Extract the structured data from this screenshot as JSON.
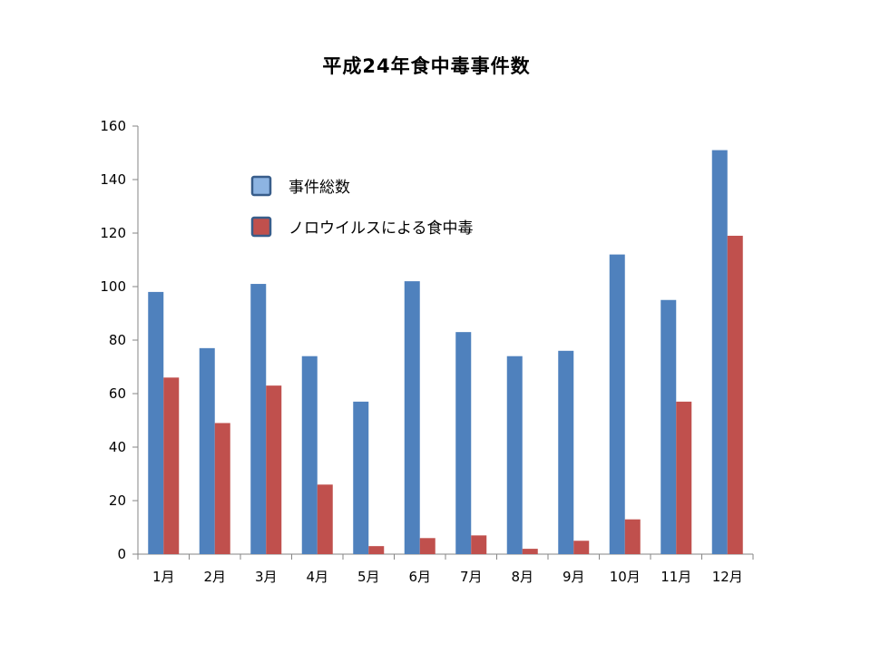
{
  "chart_data": {
    "type": "bar",
    "title": "平成24年食中毒事件数",
    "categories": [
      "1月",
      "2月",
      "3月",
      "4月",
      "5月",
      "6月",
      "7月",
      "8月",
      "9月",
      "10月",
      "11月",
      "12月"
    ],
    "series": [
      {
        "name": "事件総数",
        "color": "#4F81BD",
        "values": [
          98,
          77,
          101,
          74,
          57,
          102,
          83,
          74,
          76,
          112,
          95,
          151
        ]
      },
      {
        "name": "ノロウイルスによる食中毒",
        "color": "#C0504D",
        "values": [
          66,
          49,
          63,
          26,
          3,
          6,
          7,
          2,
          5,
          13,
          57,
          119
        ]
      }
    ],
    "ylim": [
      0,
      160
    ],
    "yticks": [
      0,
      20,
      40,
      60,
      80,
      100,
      120,
      140,
      160
    ],
    "grid": false,
    "legend_position": "top-left"
  }
}
